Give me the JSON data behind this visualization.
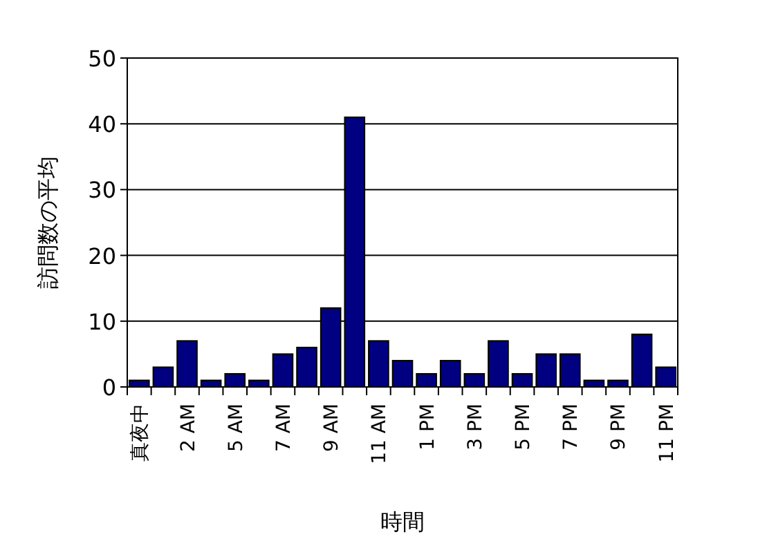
{
  "chart_data": {
    "type": "bar",
    "xlabel": "時間",
    "ylabel": "訪問数の平均",
    "categories": [
      "真夜中",
      null,
      "2 AM",
      null,
      "5 AM",
      null,
      "7 AM",
      null,
      "9 AM",
      null,
      "11 AM",
      null,
      "1 PM",
      null,
      "3 PM",
      null,
      "5 PM",
      null,
      "7 PM",
      null,
      "9 PM",
      null,
      "11 PM"
    ],
    "values": [
      1,
      3,
      7,
      1,
      2,
      1,
      5,
      6,
      12,
      41,
      7,
      4,
      2,
      4,
      2,
      7,
      2,
      5,
      5,
      1,
      1,
      8,
      3
    ],
    "color": "#000080",
    "ylim": [
      0,
      50
    ],
    "yticks": [
      0,
      10,
      20,
      30,
      40,
      50
    ],
    "grid": "y"
  }
}
